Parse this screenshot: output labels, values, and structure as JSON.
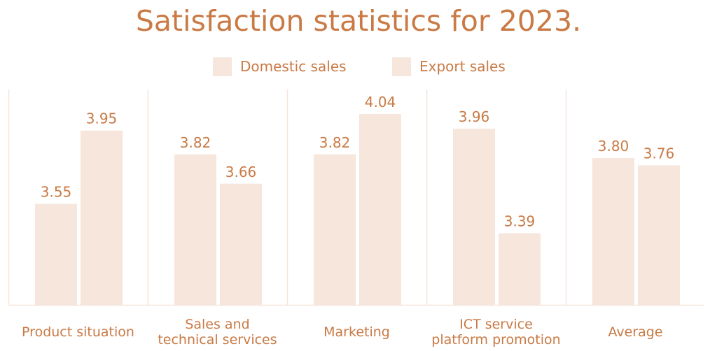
{
  "colors": {
    "text": "#c97a45",
    "bar_domestic": "#f6e6dc",
    "bar_export": "#f6e6dc",
    "gridline": "#f6e6dc"
  },
  "chart_data": {
    "type": "bar",
    "title": "Satisfaction statistics for 2023.",
    "xlabel": "",
    "ylabel": "",
    "ylim": [
      3.0,
      4.2
    ],
    "grid": false,
    "legend_position": "top-center",
    "categories": [
      [
        "Product situation"
      ],
      [
        "Sales and",
        "technical services"
      ],
      [
        "Marketing"
      ],
      [
        "ICT service",
        "platform promotion"
      ],
      [
        "Average"
      ]
    ],
    "series": [
      {
        "name": "Domestic sales",
        "values": [
          3.55,
          3.82,
          3.82,
          3.96,
          3.8
        ],
        "labels": [
          "3.55",
          "3.82",
          "3.82",
          "3.96",
          "3.80"
        ]
      },
      {
        "name": "Export sales",
        "values": [
          3.95,
          3.66,
          4.04,
          3.39,
          3.76
        ],
        "labels": [
          "3.95",
          "3.66",
          "4.04",
          "3.39",
          "3.76"
        ]
      }
    ]
  }
}
